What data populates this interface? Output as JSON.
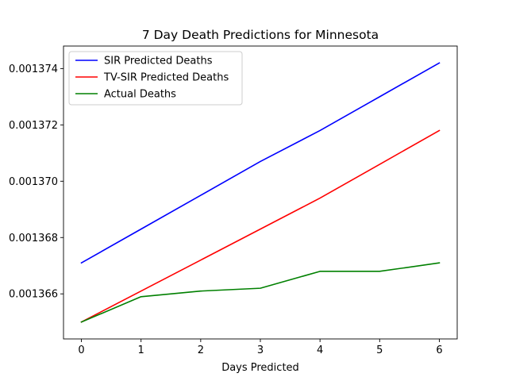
{
  "chart_data": {
    "type": "line",
    "title": "7 Day Death Predictions for Minnesota",
    "xlabel": "Days Predicted",
    "ylabel": "",
    "x": [
      0,
      1,
      2,
      3,
      4,
      5,
      6
    ],
    "x_ticks": [
      "0",
      "1",
      "2",
      "3",
      "4",
      "5",
      "6"
    ],
    "xlim": [
      -0.3,
      6.3
    ],
    "y_ticks": [
      0.001366,
      0.001368,
      0.00137,
      0.001372,
      0.001374
    ],
    "y_tick_labels": [
      "0.001366",
      "0.001368",
      "0.001370",
      "0.001372",
      "0.001374"
    ],
    "ylim": [
      0.0013644,
      0.0013748
    ],
    "grid": false,
    "legend_position": "top-left",
    "series": [
      {
        "name": "SIR Predicted Deaths",
        "color": "#0000ff",
        "values": [
          0.0013671,
          0.0013683,
          0.0013695,
          0.0013707,
          0.0013718,
          0.001373,
          0.0013742
        ]
      },
      {
        "name": "TV-SIR Predicted Deaths",
        "color": "#ff0000",
        "values": [
          0.001365,
          0.0013661,
          0.0013672,
          0.0013683,
          0.0013694,
          0.0013706,
          0.0013718
        ]
      },
      {
        "name": "Actual Deaths",
        "color": "#008000",
        "values": [
          0.001365,
          0.0013659,
          0.0013661,
          0.0013662,
          0.0013668,
          0.0013668,
          0.0013671
        ]
      }
    ]
  }
}
